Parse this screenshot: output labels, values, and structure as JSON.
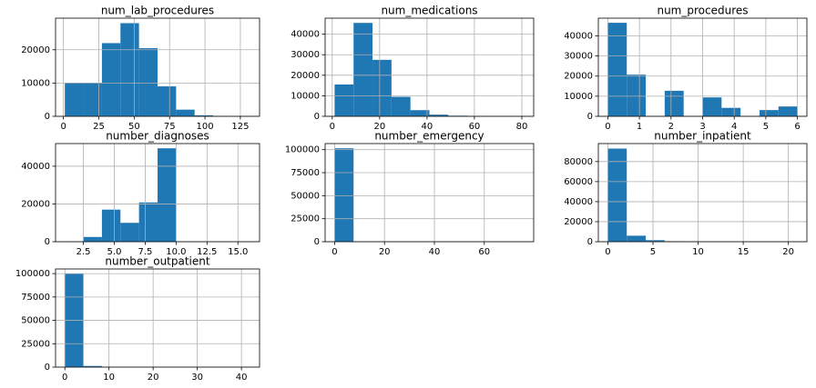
{
  "chart_data": [
    {
      "type": "histogram",
      "title": "num_lab_procedures",
      "color": "#1f77b4",
      "grid": true,
      "bins": [
        1,
        14.1,
        27.2,
        40.3,
        53.4,
        66.5,
        79.6,
        92.7,
        105.8,
        118.9,
        132
      ],
      "counts": [
        10000,
        10100,
        22000,
        28000,
        20500,
        9000,
        2000,
        300,
        50,
        10
      ],
      "xlim": [
        -5.55,
        138.55
      ],
      "xticks": [
        0,
        25,
        50,
        75,
        100,
        125
      ],
      "ylim": [
        0,
        29500
      ],
      "yticks": [
        0,
        10000,
        20000
      ]
    },
    {
      "type": "histogram",
      "title": "num_medications",
      "color": "#1f77b4",
      "grid": true,
      "bins": [
        1,
        9,
        17,
        25,
        33,
        41,
        49,
        57,
        65,
        73,
        81
      ],
      "counts": [
        15500,
        45500,
        27500,
        9500,
        3000,
        800,
        300,
        100,
        30,
        10
      ],
      "xlim": [
        -3,
        85
      ],
      "xticks": [
        0,
        20,
        40,
        60,
        80
      ],
      "ylim": [
        0,
        47800
      ],
      "yticks": [
        0,
        10000,
        20000,
        30000,
        40000
      ]
    },
    {
      "type": "histogram",
      "title": "num_procedures",
      "color": "#1f77b4",
      "grid": true,
      "bins": [
        0,
        0.6,
        1.2,
        1.8,
        2.4,
        3,
        3.6,
        4.2,
        4.8,
        5.4,
        6
      ],
      "counts": [
        46500,
        20700,
        0,
        12700,
        0,
        9400,
        4200,
        0,
        3100,
        4900
      ],
      "xlim": [
        -0.3,
        6.3
      ],
      "xticks": [
        0,
        1,
        2,
        3,
        4,
        5,
        6
      ],
      "ylim": [
        0,
        48800
      ],
      "yticks": [
        0,
        10000,
        20000,
        30000,
        40000
      ]
    },
    {
      "type": "histogram",
      "title": "number_diagnoses",
      "color": "#1f77b4",
      "grid": true,
      "bins": [
        1,
        2.5,
        4,
        5.5,
        7,
        8.5,
        10,
        11.5,
        13,
        14.5,
        16
      ],
      "counts": [
        200,
        2500,
        17000,
        10000,
        20800,
        49500,
        0,
        0,
        0,
        60
      ],
      "xlim": [
        0.25,
        16.75
      ],
      "xticks": [
        2.5,
        {
          "value": 5,
          "label": "5.0"
        },
        7.5,
        {
          "value": 10,
          "label": "10.0"
        },
        12.5,
        {
          "value": 15,
          "label": "15.0"
        }
      ],
      "ylim": [
        0,
        52000
      ],
      "yticks": [
        0,
        20000,
        40000
      ]
    },
    {
      "type": "histogram",
      "title": "number_emergency",
      "color": "#1f77b4",
      "grid": true,
      "bins": [
        0,
        7.6,
        15.2,
        22.8,
        30.4,
        38,
        45.6,
        53.2,
        60.8,
        68.4,
        76
      ],
      "counts": [
        101500,
        200,
        50,
        20,
        10,
        5,
        3,
        2,
        1,
        1
      ],
      "xlim": [
        -3.8,
        79.8
      ],
      "xticks": [
        0,
        20,
        40,
        60
      ],
      "ylim": [
        0,
        106600
      ],
      "yticks": [
        0,
        25000,
        50000,
        75000,
        100000
      ]
    },
    {
      "type": "histogram",
      "title": "number_inpatient",
      "color": "#1f77b4",
      "grid": true,
      "bins": [
        0,
        2.1,
        4.2,
        6.3,
        8.4,
        10.5,
        12.6,
        14.7,
        16.8,
        18.9,
        21
      ],
      "counts": [
        93000,
        6000,
        1500,
        500,
        200,
        60,
        30,
        10,
        5,
        3
      ],
      "xlim": [
        -1.05,
        22.05
      ],
      "xticks": [
        0,
        5,
        10,
        15,
        20
      ],
      "ylim": [
        0,
        98000
      ],
      "yticks": [
        0,
        20000,
        40000,
        60000,
        80000
      ]
    },
    {
      "type": "histogram",
      "title": "number_outpatient",
      "color": "#1f77b4",
      "grid": true,
      "bins": [
        0,
        4.2,
        8.4,
        12.6,
        16.8,
        21,
        25.2,
        29.4,
        33.6,
        37.8,
        42
      ],
      "counts": [
        100000,
        1200,
        200,
        60,
        20,
        10,
        5,
        3,
        2,
        1
      ],
      "xlim": [
        -2.1,
        44.1
      ],
      "xticks": [
        0,
        10,
        20,
        30,
        40
      ],
      "ylim": [
        0,
        105000
      ],
      "yticks": [
        0,
        25000,
        50000,
        75000,
        100000
      ]
    }
  ]
}
